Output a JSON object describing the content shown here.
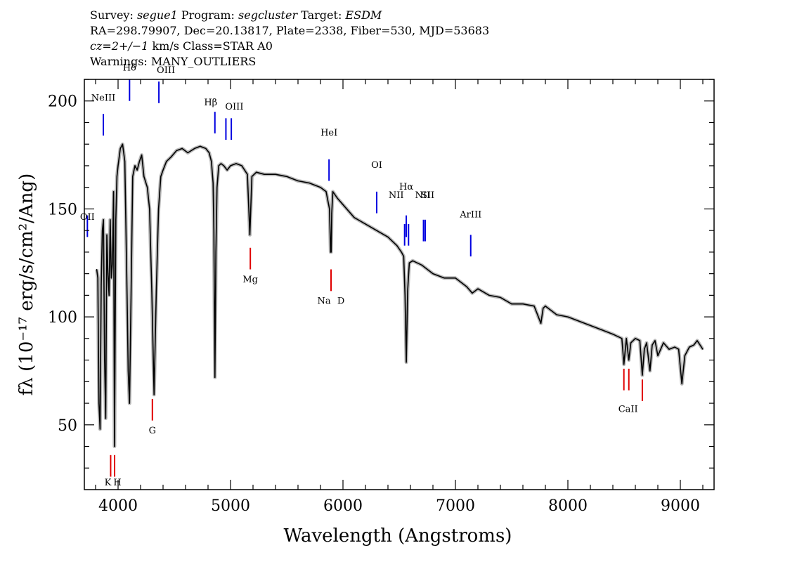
{
  "header": {
    "line1": {
      "survey_label": "Survey: ",
      "survey": "segue1",
      "program_label": " Program: ",
      "program": "segcluster",
      "target_label": " Target: ",
      "target": "ESDM"
    },
    "line2": "RA=298.79907, Dec=20.13817, Plate=2338, Fiber=530, MJD=53683",
    "line3": {
      "cz": "cz=2+/−1",
      "rest": " km/s Class=STAR A0"
    },
    "line4": "Warnings: MANY_OUTLIERS"
  },
  "chart_data": {
    "type": "line",
    "title": "",
    "xlabel": "Wavelength (Angstroms)",
    "ylabel": "fλ (10⁻¹⁷ erg/s/cm²/Ang)",
    "xlim": [
      3700,
      9300
    ],
    "ylim": [
      20,
      210
    ],
    "xticks": [
      4000,
      5000,
      6000,
      7000,
      8000,
      9000
    ],
    "yticks": [
      50,
      100,
      150,
      200
    ],
    "grid": false,
    "series": [
      {
        "color": "#000000",
        "x": [
          3810,
          3820,
          3830,
          3840,
          3850,
          3860,
          3870,
          3880,
          3890,
          3900,
          3910,
          3920,
          3930,
          3940,
          3950,
          3960,
          3968,
          3980,
          3990,
          4000,
          4020,
          4040,
          4060,
          4080,
          4090,
          4102,
          4115,
          4130,
          4150,
          4170,
          4190,
          4210,
          4230,
          4260,
          4280,
          4300,
          4320,
          4340,
          4360,
          4380,
          4400,
          4430,
          4470,
          4520,
          4570,
          4620,
          4680,
          4730,
          4780,
          4810,
          4830,
          4845,
          4852,
          4861,
          4870,
          4880,
          4895,
          4915,
          4940,
          4970,
          5000,
          5050,
          5100,
          5150,
          5172,
          5190,
          5230,
          5300,
          5400,
          5500,
          5600,
          5700,
          5800,
          5850,
          5880,
          5890,
          5895,
          5900,
          5910,
          5950,
          6000,
          6100,
          6200,
          6300,
          6400,
          6480,
          6520,
          6540,
          6552,
          6563,
          6575,
          6590,
          6620,
          6700,
          6800,
          6900,
          7000,
          7100,
          7150,
          7200,
          7300,
          7400,
          7500,
          7600,
          7700,
          7760,
          7780,
          7800,
          7900,
          8000,
          8100,
          8200,
          8300,
          8400,
          8480,
          8498,
          8520,
          8542,
          8560,
          8600,
          8640,
          8662,
          8680,
          8700,
          8730,
          8750,
          8775,
          8800,
          8850,
          8900,
          8950,
          8985,
          9014,
          9040,
          9080,
          9120,
          9150,
          9200
        ],
        "values": [
          122,
          118,
          60,
          48,
          115,
          140,
          145,
          80,
          53,
          138,
          120,
          110,
          145,
          118,
          125,
          158,
          40,
          145,
          165,
          170,
          178,
          180,
          172,
          110,
          75,
          60,
          108,
          165,
          170,
          168,
          172,
          175,
          165,
          160,
          150,
          112,
          64,
          112,
          150,
          165,
          168,
          172,
          174,
          177,
          178,
          176,
          178,
          179,
          178,
          176,
          172,
          162,
          140,
          72,
          130,
          160,
          170,
          171,
          170,
          168,
          170,
          171,
          170,
          166,
          138,
          165,
          167,
          166,
          166,
          165,
          163,
          162,
          160,
          158,
          150,
          130,
          130,
          148,
          158,
          155,
          152,
          146,
          143,
          140,
          137,
          133,
          130,
          128,
          110,
          79,
          112,
          125,
          126,
          124,
          120,
          118,
          118,
          114,
          111,
          113,
          110,
          109,
          106,
          106,
          105,
          97,
          104,
          105,
          101,
          100,
          98,
          96,
          94,
          92,
          90,
          78,
          90,
          80,
          88,
          90,
          89,
          73,
          85,
          88,
          75,
          87,
          89,
          82,
          88,
          85,
          86,
          85,
          69,
          82,
          86,
          87,
          89,
          85
        ]
      }
    ],
    "spectral_lines": [
      {
        "name": "OII",
        "x": 3727,
        "y_low": 137,
        "y_high": 147,
        "color": "blue",
        "label_y": 145,
        "label_dx": 0
      },
      {
        "name": "NeIII",
        "x": 3869,
        "y_low": 184,
        "y_high": 194,
        "color": "blue",
        "label_y": 200,
        "label_dx": 0
      },
      {
        "name": "Hδ",
        "x": 4102,
        "y_low": 200,
        "y_high": 210,
        "color": "blue",
        "label_y": 214,
        "label_dx": 0
      },
      {
        "name": "OIII",
        "x": 4363,
        "y_low": 199,
        "y_high": 209,
        "color": "blue",
        "label_y": 213,
        "label_dx": 10
      },
      {
        "name": "Hβ",
        "x": 4861,
        "y_low": 185,
        "y_high": 195,
        "color": "blue",
        "label_y": 198,
        "label_dx": -6
      },
      {
        "name": "OIII",
        "x": 4959,
        "y_low": 182,
        "y_high": 192,
        "color": "blue",
        "label_y": 196,
        "label_dx": 12
      },
      {
        "name": "OIII",
        "x": 5007,
        "y_low": 182,
        "y_high": 192,
        "color": "blue",
        "label_y": null,
        "label_dx": 0
      },
      {
        "name": "HeI",
        "x": 5876,
        "y_low": 163,
        "y_high": 173,
        "color": "blue",
        "label_y": 184,
        "label_dx": 0
      },
      {
        "name": "OI",
        "x": 6300,
        "y_low": 148,
        "y_high": 158,
        "color": "blue",
        "label_y": 169,
        "label_dx": 0
      },
      {
        "name": "NII",
        "x": 6548,
        "y_low": 133,
        "y_high": 143,
        "color": "blue",
        "label_y": 155,
        "label_dx": -12
      },
      {
        "name": "Hα",
        "x": 6563,
        "y_low": 137,
        "y_high": 147,
        "color": "blue",
        "label_y": 159,
        "label_dx": 0
      },
      {
        "name": "NII",
        "x": 6583,
        "y_low": 133,
        "y_high": 143,
        "color": "blue",
        "label_y": 155,
        "label_dx": 20
      },
      {
        "name": "SII",
        "x": 6716,
        "y_low": 135,
        "y_high": 145,
        "color": "blue",
        "label_y": 155,
        "label_dx": 6
      },
      {
        "name": "SII",
        "x": 6731,
        "y_low": 135,
        "y_high": 145,
        "color": "blue",
        "label_y": null,
        "label_dx": 0
      },
      {
        "name": "ArIII",
        "x": 7136,
        "y_low": 128,
        "y_high": 138,
        "color": "blue",
        "label_y": 146,
        "label_dx": 0
      },
      {
        "name": "K",
        "x": 3934,
        "y_low": 26,
        "y_high": 36,
        "color": "red",
        "label_y": 22,
        "label_dx": -4
      },
      {
        "name": "H",
        "x": 3969,
        "y_low": 26,
        "y_high": 36,
        "color": "red",
        "label_y": 22,
        "label_dx": 4
      },
      {
        "name": "G",
        "x": 4305,
        "y_low": 52,
        "y_high": 62,
        "color": "red",
        "label_y": 46,
        "label_dx": 0
      },
      {
        "name": "Mg",
        "x": 5176,
        "y_low": 122,
        "y_high": 132,
        "color": "red",
        "label_y": 116,
        "label_dx": 0
      },
      {
        "name": "Na",
        "x": 5894,
        "y_low": 112,
        "y_high": 122,
        "color": "red",
        "label_y": 106,
        "label_dx": -10
      },
      {
        "name": "D",
        "x": 5894,
        "y_low": 112,
        "y_high": 122,
        "color": "red",
        "label_y": 106,
        "label_dx": 14
      },
      {
        "name": "CaII",
        "x": 8498,
        "y_low": 66,
        "y_high": 76,
        "color": "red",
        "label_y": 56,
        "label_dx": 6
      },
      {
        "name": "CaII",
        "x": 8542,
        "y_low": 66,
        "y_high": 76,
        "color": "red",
        "label_y": null,
        "label_dx": 0
      },
      {
        "name": "CaII",
        "x": 8662,
        "y_low": 61,
        "y_high": 71,
        "color": "red",
        "label_y": null,
        "label_dx": 0
      }
    ]
  }
}
